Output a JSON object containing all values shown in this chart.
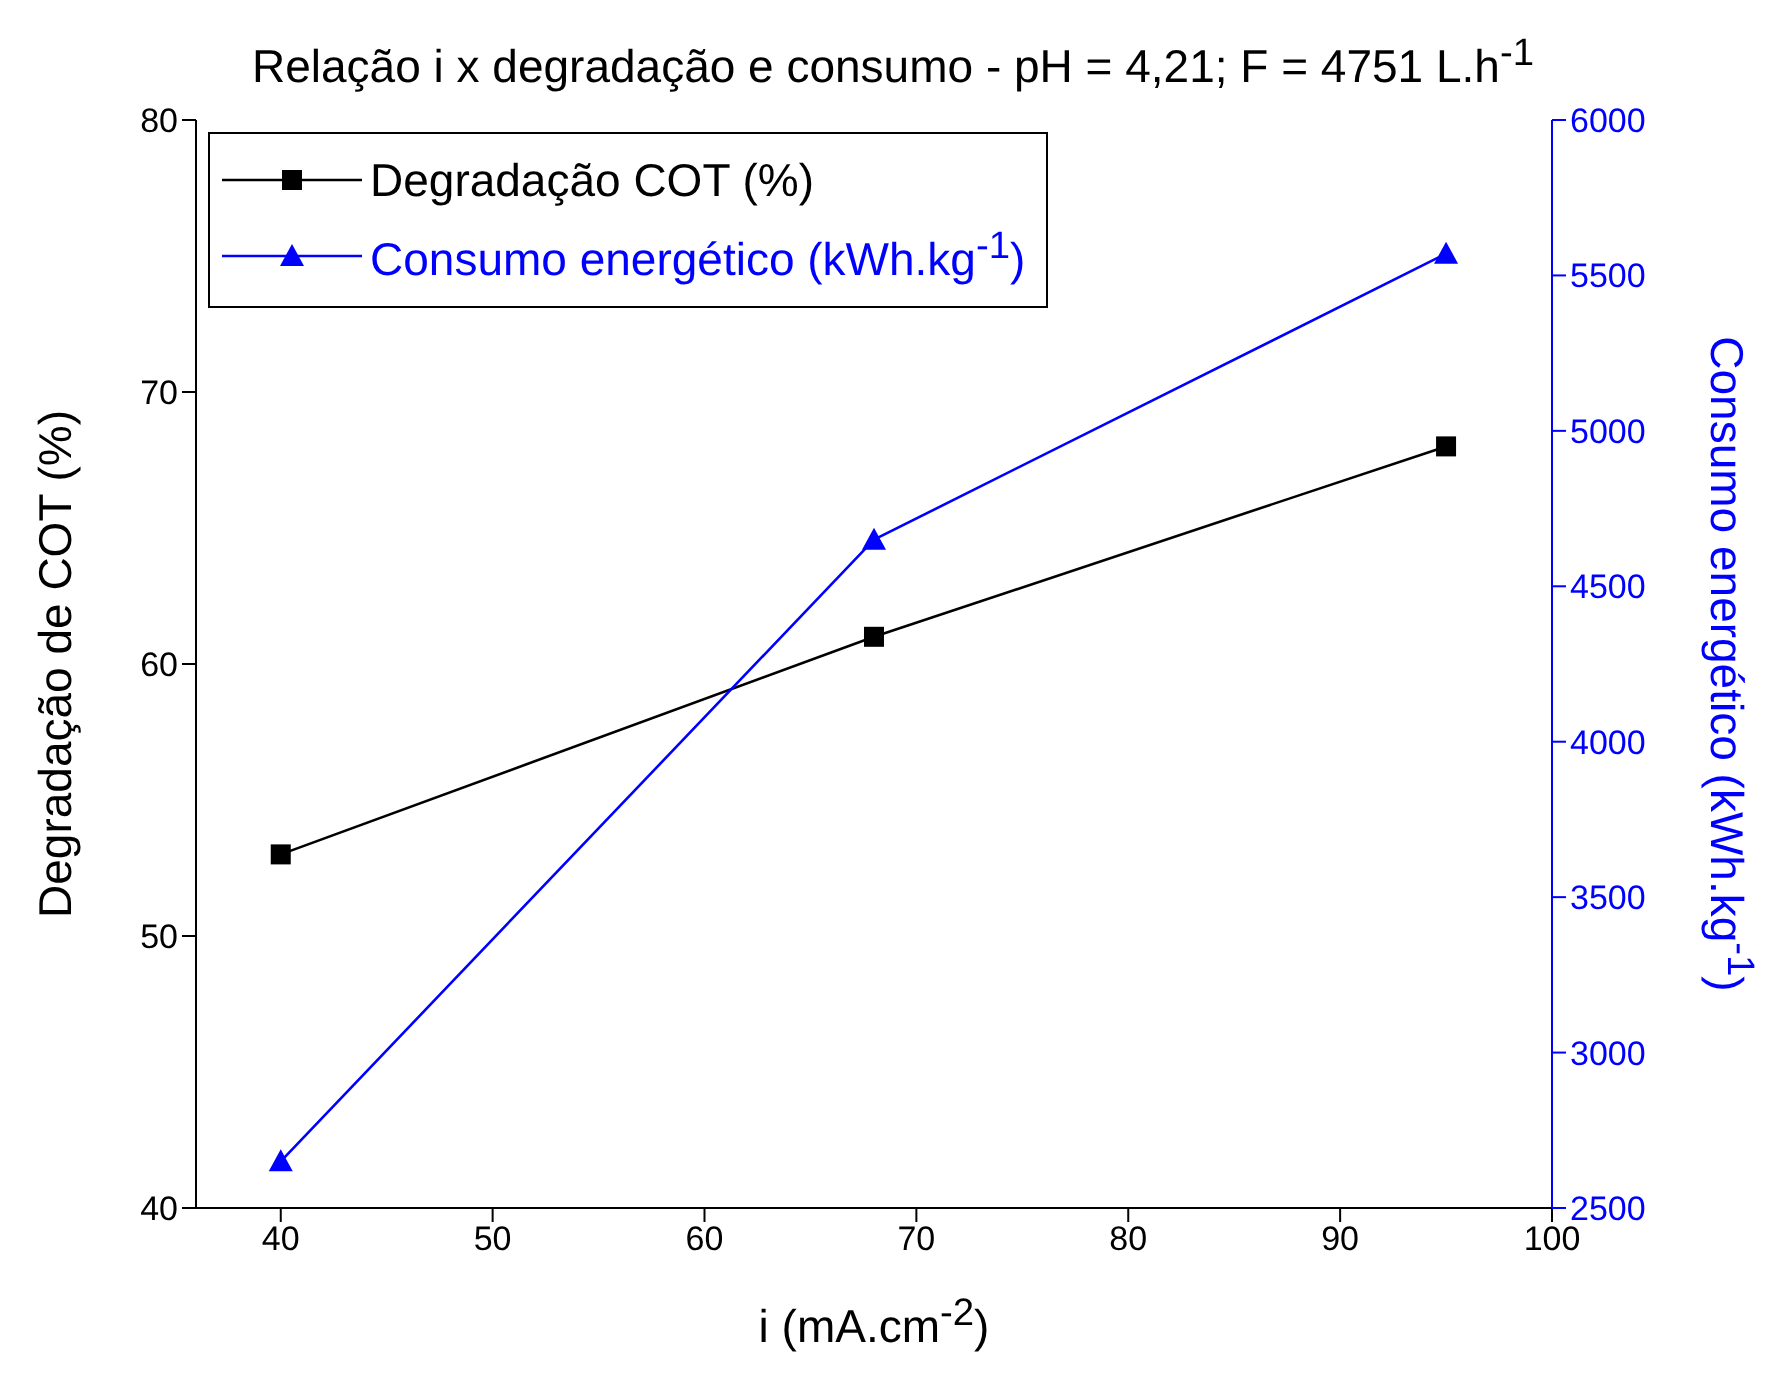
{
  "chart_data": {
    "type": "line",
    "title": "Relação i x degradação e consumo - pH = 4,21; F = 4751 L.h$^{-1}$",
    "xlabel": "i (mA.cm$^{-2}$)",
    "ylabel": "Degradação de COT (%)",
    "y2label": "Consumo energético (kWh.kg$^{-1}$)",
    "x": [
      40,
      68,
      95
    ],
    "series": [
      {
        "name": "Degradação COT (%)",
        "color": "#000000",
        "values": [
          53,
          61,
          68
        ],
        "marker": "square"
      },
      {
        "name": "Consumo energético (kWh.kg$^{-1}$)",
        "color": "#0000ff",
        "values": [
          2650,
          4650,
          5570
        ],
        "marker": "triangle",
        "axis": "y2"
      }
    ],
    "xlim": [
      36,
      100
    ],
    "xticks": [
      40,
      50,
      60,
      70,
      80,
      90,
      100
    ],
    "ylim": [
      40,
      80
    ],
    "yticks": [
      40,
      50,
      60,
      70,
      80
    ],
    "y2lim": [
      2500,
      6000
    ],
    "y2ticks": [
      2500,
      3000,
      3500,
      4000,
      4500,
      5000,
      5500,
      6000
    ],
    "legend": "top left",
    "grid": false,
    "line_style": "solid"
  }
}
